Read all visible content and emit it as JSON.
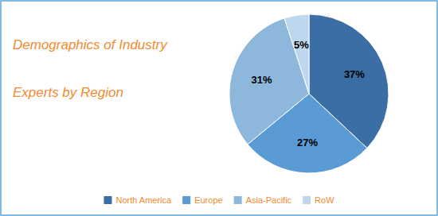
{
  "chart_data": {
    "type": "pie",
    "title": "Demographics of Industry",
    "subtitle": "Experts by Region",
    "categories": [
      "North America",
      "Europe",
      "Asia-Pacific",
      "RoW"
    ],
    "values": [
      37,
      27,
      31,
      5
    ],
    "value_labels": [
      "37%",
      "27%",
      "31%",
      "5%"
    ],
    "colors": [
      "#3A6EA5",
      "#5B9BD5",
      "#8DB8DC",
      "#BDD7EE"
    ],
    "data_labels": true,
    "legend": "bottom"
  }
}
